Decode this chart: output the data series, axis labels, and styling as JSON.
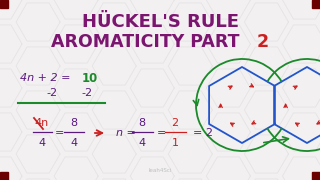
{
  "bg_color": "#f2f0f0",
  "hex_color": "#dcdada",
  "title_line1": "HÜCKEL'S RULE",
  "title_line2": "AROMATICITY PART ",
  "title_part2_num": "2",
  "title_color": "#7b1570",
  "corner_color": "#6b0000",
  "math_color_purple": "#5a1a80",
  "math_color_green": "#1a8a2a",
  "math_color_red": "#cc2020",
  "watermark": "leah4Sci",
  "watermark_color": "#bbbbbb"
}
